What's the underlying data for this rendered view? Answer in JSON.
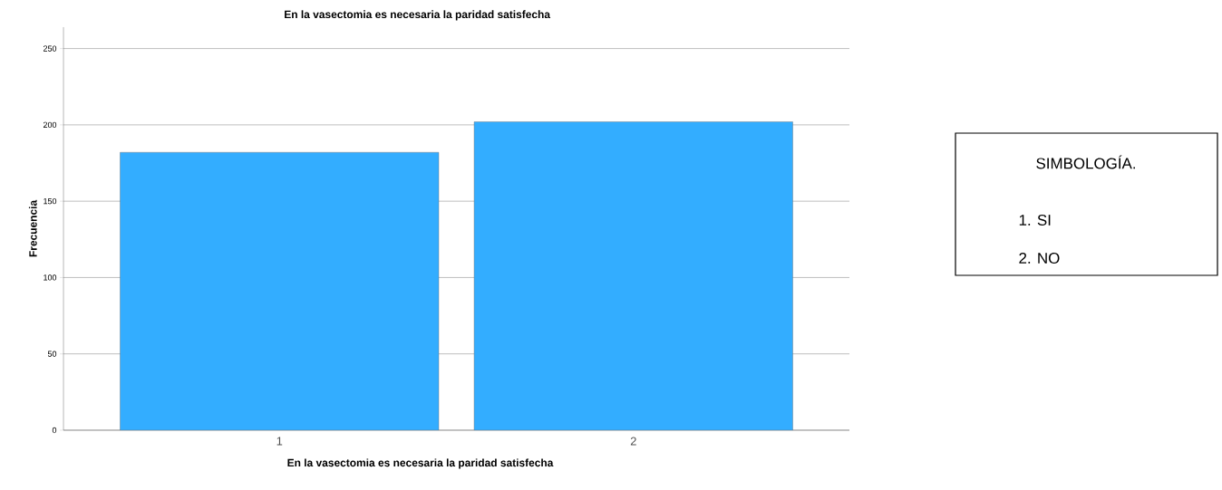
{
  "chart_data": {
    "type": "bar",
    "title": "En la vasectomia es necesaria la paridad satisfecha",
    "xlabel": "En la vasectomia es necesaria la paridad satisfecha",
    "ylabel": "Frecuencia",
    "categories": [
      "1",
      "2"
    ],
    "values": [
      182,
      202
    ],
    "color": "#33adff",
    "ylim": [
      0,
      264
    ],
    "yticks": [
      0,
      50,
      100,
      150,
      200,
      250
    ],
    "grid": "y",
    "annotations": [
      "SIMBOLOGÍA.",
      "1. SI",
      "2. NO"
    ]
  }
}
